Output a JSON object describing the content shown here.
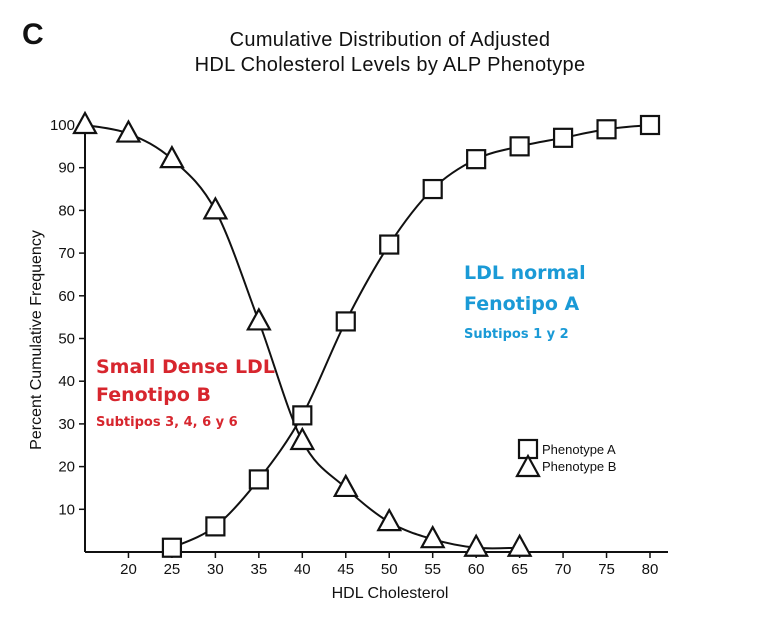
{
  "panel_letter": "C",
  "title_line1": "Cumulative Distribution of Adjusted",
  "title_line2": "HDL Cholesterol Levels by ALP Phenotype",
  "annotations": {
    "b_line1": "Small Dense LDL",
    "b_line2": "Fenotipo B",
    "b_line3": "Subtipos 3, 4, 6 y 6",
    "a_line1": "LDL normal",
    "a_line2": "Fenotipo A",
    "a_line3": "Subtipos 1 y 2"
  },
  "colors": {
    "annotation_b": "#d7262e",
    "annotation_a": "#1a9ad6",
    "ink": "#111111"
  },
  "chart_data": {
    "type": "line",
    "xlabel": "HDL Cholesterol",
    "ylabel": "Percent Cumulative Frequency",
    "xlim": [
      15,
      80
    ],
    "ylim": [
      0,
      100
    ],
    "x_ticks": [
      20,
      25,
      30,
      35,
      40,
      45,
      50,
      55,
      60,
      65,
      70,
      75,
      80
    ],
    "y_ticks": [
      10,
      20,
      30,
      40,
      50,
      60,
      70,
      80,
      90,
      100
    ],
    "grid": false,
    "legend_position": "right",
    "series": [
      {
        "name": "Phenotype A",
        "marker": "square",
        "x": [
          25,
          30,
          35,
          40,
          45,
          50,
          55,
          60,
          65,
          70,
          75,
          80
        ],
        "y": [
          1,
          6,
          17,
          32,
          54,
          72,
          85,
          92,
          95,
          97,
          99,
          100
        ]
      },
      {
        "name": "Phenotype B",
        "marker": "triangle",
        "x": [
          15,
          20,
          25,
          30,
          35,
          40,
          45,
          50,
          55,
          60,
          65
        ],
        "y": [
          100,
          98,
          92,
          80,
          54,
          26,
          15,
          7,
          3,
          1,
          1
        ]
      }
    ]
  }
}
